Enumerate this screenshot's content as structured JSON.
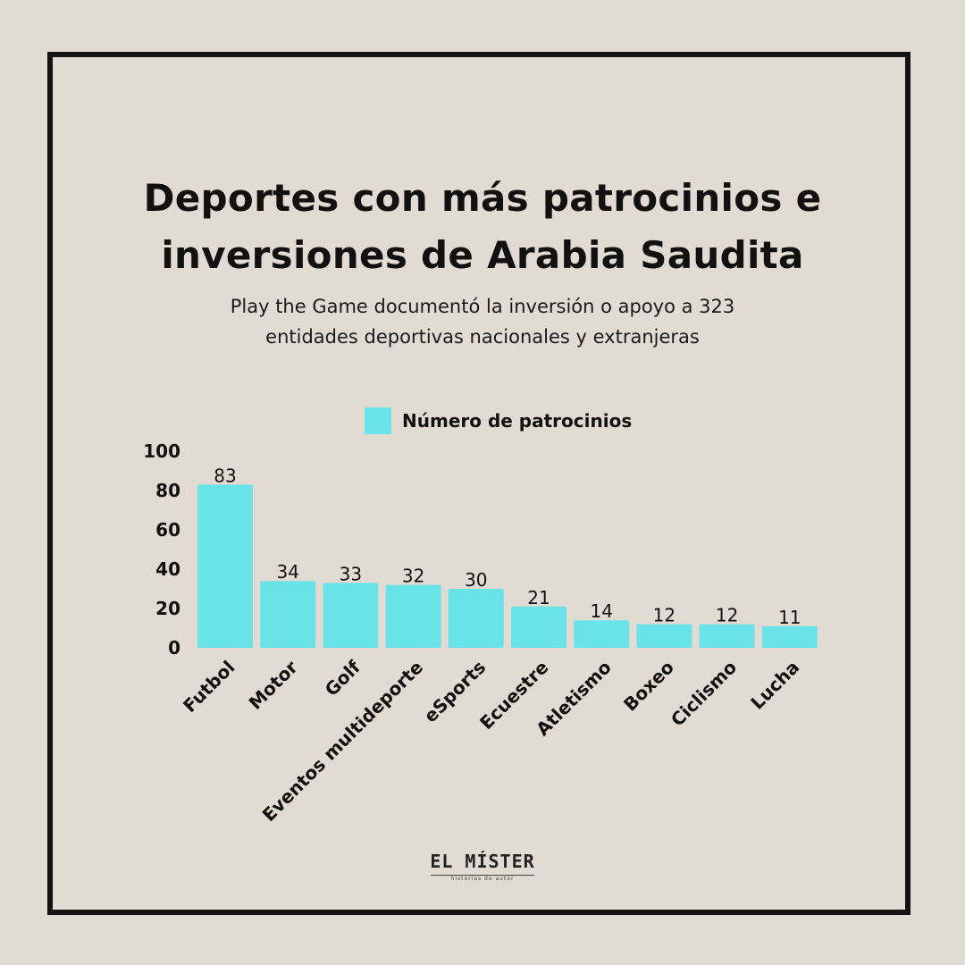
{
  "title_lines": [
    "Deportes con más patrocinios e",
    "inversiones de Arabia Saudita"
  ],
  "subtitle_lines": [
    "Play the Game documentó la inversión o apoyo a 323",
    "entidades deportivas nacionales y extranjeras"
  ],
  "legend_label": "Número de patrocinios",
  "logo": {
    "main": "EL MÍSTER",
    "sub": "historias de autor"
  },
  "colors": {
    "bar": "#6ae3e8",
    "background": "#e2dbd3",
    "frame": "#141414"
  },
  "chart_data": {
    "type": "bar",
    "title": "Deportes con más patrocinios e inversiones de Arabia Saudita",
    "categories": [
      "Futbol",
      "Motor",
      "Golf",
      "Eventos multideporte",
      "eSports",
      "Ecuestre",
      "Atletismo",
      "Boxeo",
      "Ciclismo",
      "Lucha"
    ],
    "series": [
      {
        "name": "Número de patrocinios",
        "values": [
          83,
          34,
          33,
          32,
          30,
          21,
          14,
          12,
          12,
          11
        ]
      }
    ],
    "yticks": [
      0,
      20,
      40,
      60,
      80,
      100
    ],
    "ylim": [
      0,
      100
    ],
    "xlabel": "",
    "ylabel": "",
    "grid": false,
    "legend_position": "top-center"
  }
}
